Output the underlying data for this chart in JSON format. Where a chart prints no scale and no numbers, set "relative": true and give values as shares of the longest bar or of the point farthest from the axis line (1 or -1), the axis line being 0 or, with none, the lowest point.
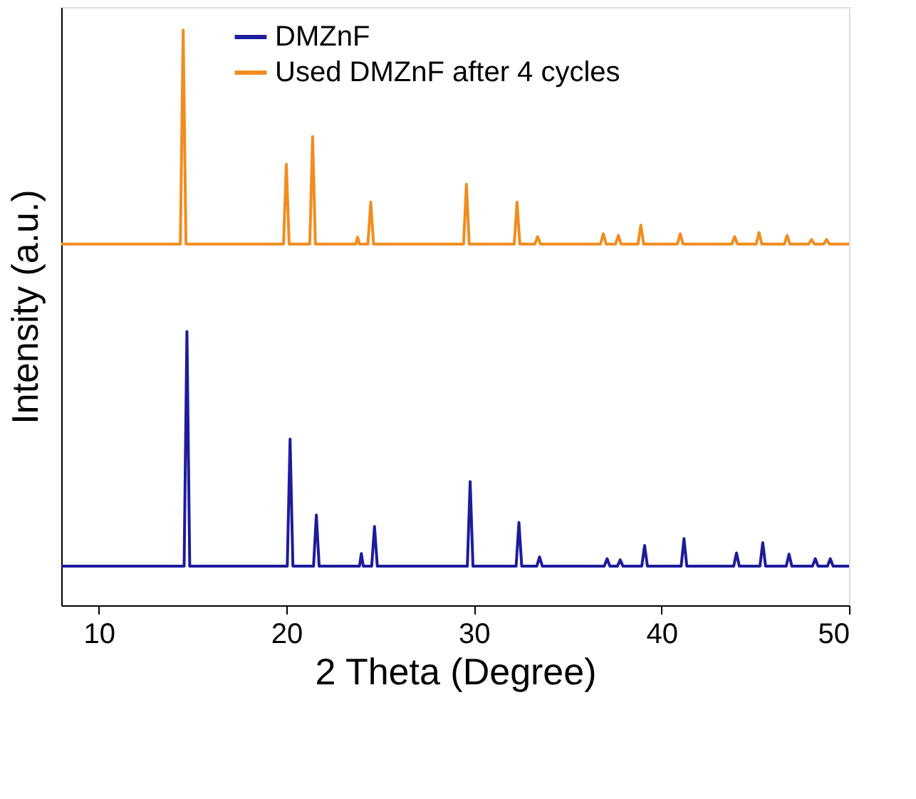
{
  "chart_data": {
    "type": "line",
    "relative": true,
    "xlabel": "2 Theta (Degree)",
    "ylabel": "Intensity (a.u.)",
    "xlim": [
      8,
      50
    ],
    "xticks": [
      10,
      20,
      30,
      40,
      50
    ],
    "tick_labels": "x",
    "grid": false,
    "legend": "top",
    "marker": "none",
    "line_style": "solid",
    "series": [
      {
        "name": "DMZnF",
        "color": "#1c1c9c",
        "x": [
          8,
          14.55,
          14.7,
          14.85,
          20.05,
          20.2,
          20.35,
          21.45,
          21.6,
          21.75,
          23.9,
          24.0,
          24.1,
          24.55,
          24.7,
          24.85,
          29.65,
          29.8,
          29.95,
          32.25,
          32.4,
          32.55,
          33.35,
          33.5,
          33.65,
          36.95,
          37.1,
          37.25,
          37.65,
          37.8,
          37.95,
          38.95,
          39.1,
          39.25,
          41.05,
          41.2,
          41.35,
          43.85,
          44.0,
          44.15,
          45.25,
          45.4,
          45.55,
          46.65,
          46.8,
          46.95,
          48.05,
          48.2,
          48.35,
          48.85,
          49.0,
          49.15,
          50
        ],
        "values": [
          0.068,
          0.068,
          0.476,
          0.068,
          0.068,
          0.289,
          0.068,
          0.068,
          0.157,
          0.068,
          0.068,
          0.09,
          0.068,
          0.068,
          0.137,
          0.068,
          0.068,
          0.215,
          0.068,
          0.068,
          0.144,
          0.068,
          0.068,
          0.084,
          0.068,
          0.068,
          0.081,
          0.068,
          0.068,
          0.079,
          0.068,
          0.068,
          0.104,
          0.068,
          0.068,
          0.116,
          0.068,
          0.068,
          0.091,
          0.068,
          0.068,
          0.109,
          0.068,
          0.068,
          0.089,
          0.068,
          0.068,
          0.081,
          0.068,
          0.068,
          0.081,
          0.068,
          0.068
        ]
      },
      {
        "name": "Used DMZnF after 4 cycles",
        "color": "#f28c1e",
        "x": [
          8,
          14.35,
          14.5,
          14.65,
          19.85,
          20.0,
          20.15,
          21.25,
          21.4,
          21.55,
          23.7,
          23.8,
          23.9,
          24.35,
          24.5,
          24.65,
          29.45,
          29.6,
          29.75,
          32.15,
          32.3,
          32.45,
          33.25,
          33.4,
          33.55,
          36.75,
          36.9,
          37.05,
          37.55,
          37.7,
          37.85,
          38.75,
          38.9,
          39.05,
          40.85,
          41.0,
          41.15,
          43.75,
          43.9,
          44.05,
          45.05,
          45.2,
          45.35,
          46.55,
          46.7,
          46.85,
          47.85,
          48.0,
          48.15,
          48.65,
          48.8,
          48.95,
          50
        ],
        "values": [
          0.628,
          0.628,
          1.0,
          0.628,
          0.628,
          0.767,
          0.628,
          0.628,
          0.815,
          0.628,
          0.628,
          0.64,
          0.628,
          0.628,
          0.701,
          0.628,
          0.628,
          0.732,
          0.628,
          0.628,
          0.701,
          0.628,
          0.628,
          0.641,
          0.628,
          0.628,
          0.646,
          0.628,
          0.628,
          0.643,
          0.628,
          0.628,
          0.661,
          0.628,
          0.628,
          0.646,
          0.628,
          0.628,
          0.641,
          0.628,
          0.628,
          0.648,
          0.628,
          0.628,
          0.643,
          0.628,
          0.628,
          0.636,
          0.628,
          0.628,
          0.636,
          0.628,
          0.628
        ]
      }
    ]
  }
}
